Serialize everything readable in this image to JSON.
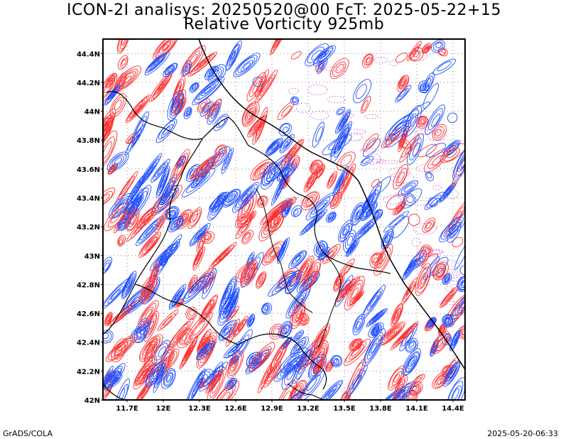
{
  "header": {
    "title_line1": "ICON-2I analisys: 20250520@00 FcT: 2025-05-22+15",
    "title_line2": "Relative Vorticity 925mb"
  },
  "footer": {
    "left": "GrADS/COLA",
    "right": "2025-05-20-06:33"
  },
  "map": {
    "lon_range": [
      11.5,
      14.5
    ],
    "lat_range": [
      42.0,
      44.5
    ],
    "lat_ticks": [
      "44.4N",
      "44.2N",
      "44N",
      "43.8N",
      "43.6N",
      "43.4N",
      "43.2N",
      "43N",
      "42.8N",
      "42.6N",
      "42.4N",
      "42.2N",
      "42N"
    ],
    "lat_values": [
      44.4,
      44.2,
      44.0,
      43.8,
      43.6,
      43.4,
      43.2,
      43.0,
      42.8,
      42.6,
      42.4,
      42.2,
      42.0
    ],
    "lon_ticks": [
      "11.7E",
      "12E",
      "12.3E",
      "12.6E",
      "12.9E",
      "13.2E",
      "13.5E",
      "13.8E",
      "14.1E",
      "14.4E"
    ],
    "lon_values": [
      11.7,
      12.0,
      12.3,
      12.6,
      12.9,
      13.2,
      13.5,
      13.8,
      14.1,
      14.4
    ],
    "grid": "dotted",
    "colors": {
      "positive_contour": "#ff3030",
      "negative_contour": "#2050ff",
      "sea_dotted": "#cc66cc",
      "coastline": "#000000"
    }
  }
}
